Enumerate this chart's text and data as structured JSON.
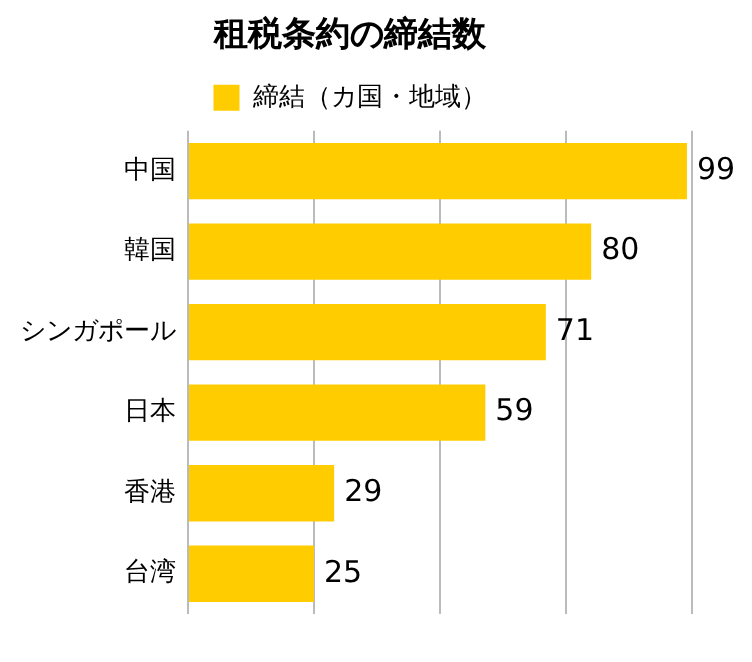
{
  "chart_data": {
    "type": "bar",
    "orientation": "horizontal",
    "title": "租税条約の締結数",
    "categories": [
      "中国",
      "韓国",
      "シンガポール",
      "日本",
      "香港",
      "台湾"
    ],
    "series": [
      {
        "name": "締結（カ国・地域）",
        "color": "#ffcc00",
        "values": [
          99,
          80,
          71,
          59,
          29,
          25
        ]
      }
    ],
    "xlim": [
      0,
      100
    ],
    "xticks": [
      {
        "value": 0,
        "label": null
      },
      {
        "value": 25,
        "label": null
      },
      {
        "value": 50,
        "label": null
      },
      {
        "value": 75,
        "label": null
      },
      {
        "value": 100,
        "label": null
      }
    ],
    "grid": "x",
    "legend": "top",
    "tick_labels": "y",
    "data_labels": true
  }
}
